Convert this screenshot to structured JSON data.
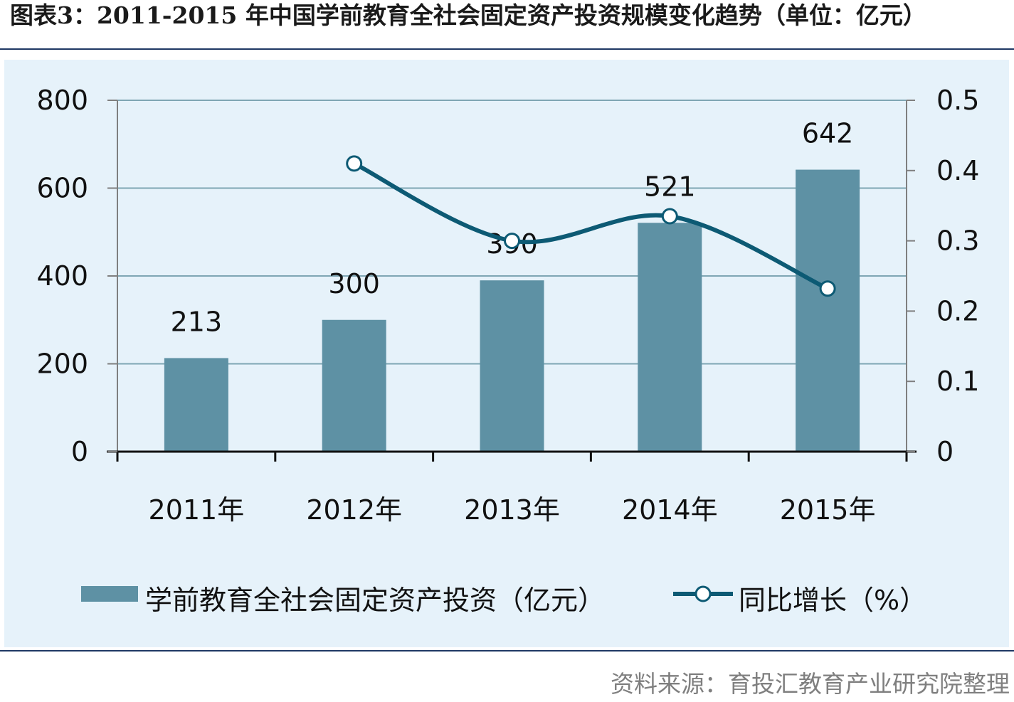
{
  "header": {
    "title": "图表3：2011-2015 年中国学前教育全社会固定资产投资规模变化趋势（单位：亿元）"
  },
  "footer": {
    "source": "资料来源：育投汇教育产业研究院整理"
  },
  "colors": {
    "plot_bg": "#e6f2fa",
    "bar": "#5e91a4",
    "line": "#0d5a74",
    "grid": "#7fa6b4",
    "rule": "#1f3864"
  },
  "chart_data": {
    "type": "bar",
    "categories": [
      "2011年",
      "2012年",
      "2013年",
      "2014年",
      "2015年"
    ],
    "series": [
      {
        "name": "学前教育全社会固定资产投资（亿元）",
        "type": "bar",
        "axis": "left",
        "values": [
          213,
          300,
          390,
          521,
          642
        ],
        "labels": [
          "213",
          "300",
          "390",
          "521",
          "642"
        ]
      },
      {
        "name": "同比增长（%）",
        "type": "line",
        "axis": "right",
        "values": [
          null,
          0.41,
          0.3,
          0.335,
          0.232
        ]
      }
    ],
    "y_left": {
      "ylim": [
        0,
        800
      ],
      "ticks": [
        "0",
        "200",
        "400",
        "600",
        "800"
      ]
    },
    "y_right": {
      "ylim": [
        0,
        0.5
      ],
      "ticks": [
        "0",
        "0.1",
        "0.2",
        "0.3",
        "0.4",
        "0.5"
      ]
    },
    "grid": true,
    "legend_position": "bottom"
  }
}
